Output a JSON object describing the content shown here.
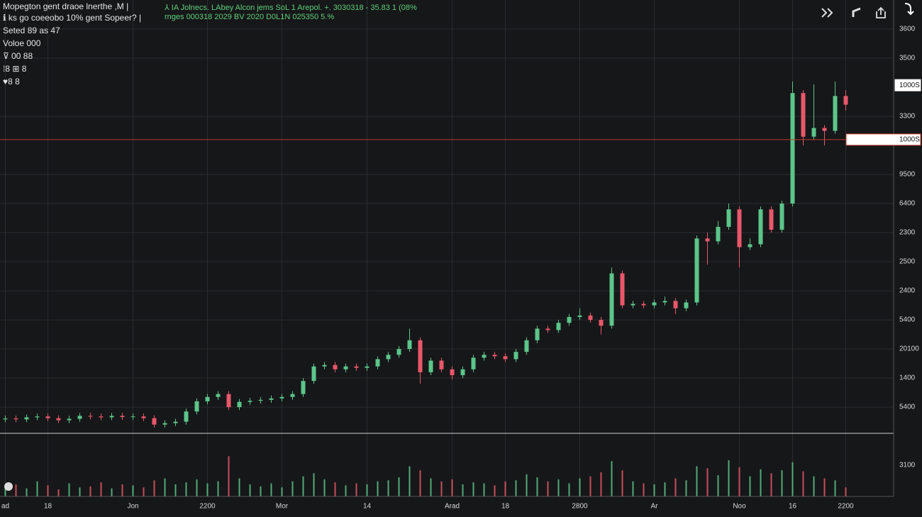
{
  "header": {
    "lines": [
      "Mopegton gent draoe lnerthe ,M |",
      "ℹ ks go coeeobo 10% gent Sopeer? |",
      "Seted 89 as 47",
      "Voloe 000",
      "⊽ 00 88",
      "⁞8 ⊞ 8",
      "♥8 8"
    ],
    "quote": [
      "⅄ IA Jolnecs. LAbey Alcon jems SoL 1 Arepol. +. 3030318 - 35.83 1 (08%",
      "rnges 000318 2029 BV 2020 D0L1N 025350 5.%"
    ]
  },
  "chart_data": {
    "type": "candlestick",
    "categories": [
      "ad",
      null,
      null,
      null,
      "18",
      null,
      null,
      null,
      null,
      null,
      null,
      null,
      "Jon",
      null,
      null,
      null,
      null,
      null,
      null,
      "2200",
      null,
      null,
      null,
      null,
      null,
      null,
      "Mor",
      null,
      null,
      null,
      null,
      null,
      null,
      null,
      "14",
      null,
      null,
      null,
      null,
      null,
      null,
      null,
      "Arad",
      null,
      null,
      null,
      null,
      "18",
      null,
      null,
      null,
      null,
      null,
      null,
      "2800",
      null,
      null,
      null,
      null,
      null,
      null,
      "Ar",
      null,
      null,
      null,
      null,
      null,
      null,
      null,
      "Noo",
      null,
      null,
      null,
      null,
      "16",
      null,
      null,
      null,
      null,
      "2200"
    ],
    "open": [
      2258,
      2261,
      2258,
      2265,
      2268,
      2262,
      2255,
      2260,
      2270,
      2268,
      2265,
      2270,
      2266,
      2268,
      2262,
      2240,
      2245,
      2250,
      2285,
      2320,
      2335,
      2345,
      2300,
      2318,
      2322,
      2325,
      2330,
      2335,
      2345,
      2390,
      2440,
      2445,
      2430,
      2440,
      2435,
      2440,
      2465,
      2480,
      2500,
      2530,
      2420,
      2460,
      2430,
      2410,
      2430,
      2470,
      2480,
      2475,
      2465,
      2490,
      2530,
      2570,
      2565,
      2590,
      2610,
      2615,
      2600,
      2580,
      2760,
      2650,
      2655,
      2650,
      2660,
      2665,
      2640,
      2660,
      2880,
      2870,
      2920,
      2980,
      2850,
      2860,
      2980,
      2910,
      3000,
      3380,
      3230,
      3260,
      3250,
      3370
    ],
    "high": [
      2271,
      2271,
      2275,
      2278,
      2278,
      2272,
      2270,
      2280,
      2280,
      2278,
      2280,
      2280,
      2278,
      2278,
      2272,
      2255,
      2260,
      2295,
      2330,
      2345,
      2355,
      2355,
      2328,
      2332,
      2335,
      2340,
      2345,
      2355,
      2400,
      2450,
      2455,
      2455,
      2450,
      2450,
      2450,
      2475,
      2490,
      2510,
      2570,
      2540,
      2470,
      2470,
      2440,
      2440,
      2480,
      2490,
      2490,
      2485,
      2500,
      2540,
      2580,
      2580,
      2600,
      2620,
      2640,
      2625,
      2610,
      2780,
      2770,
      2665,
      2665,
      2670,
      2680,
      2675,
      2670,
      2890,
      2900,
      2940,
      3000,
      2990,
      2880,
      2990,
      2990,
      3010,
      3420,
      3390,
      3410,
      3270,
      3420,
      3390
    ],
    "low": [
      2248,
      2248,
      2248,
      2255,
      2252,
      2245,
      2245,
      2250,
      2258,
      2255,
      2255,
      2256,
      2256,
      2252,
      2230,
      2230,
      2235,
      2240,
      2275,
      2310,
      2325,
      2290,
      2290,
      2308,
      2312,
      2315,
      2320,
      2325,
      2335,
      2380,
      2430,
      2420,
      2420,
      2425,
      2425,
      2430,
      2455,
      2470,
      2490,
      2380,
      2410,
      2420,
      2395,
      2400,
      2420,
      2460,
      2465,
      2455,
      2455,
      2480,
      2520,
      2555,
      2555,
      2580,
      2600,
      2590,
      2550,
      2570,
      2640,
      2640,
      2640,
      2640,
      2650,
      2620,
      2630,
      2650,
      2790,
      2860,
      2910,
      2780,
      2840,
      2850,
      2900,
      2900,
      2990,
      3200,
      3220,
      3200,
      3240,
      3320
    ],
    "close": [
      2261,
      2258,
      2265,
      2268,
      2262,
      2255,
      2260,
      2270,
      2268,
      2265,
      2270,
      2266,
      2268,
      2262,
      2240,
      2245,
      2250,
      2285,
      2320,
      2335,
      2345,
      2300,
      2318,
      2322,
      2325,
      2330,
      2335,
      2345,
      2390,
      2440,
      2445,
      2430,
      2440,
      2435,
      2440,
      2465,
      2480,
      2500,
      2530,
      2420,
      2460,
      2430,
      2410,
      2430,
      2470,
      2480,
      2475,
      2465,
      2490,
      2530,
      2570,
      2565,
      2590,
      2610,
      2615,
      2600,
      2580,
      2760,
      2650,
      2655,
      2650,
      2660,
      2665,
      2640,
      2660,
      2880,
      2870,
      2920,
      2980,
      2850,
      2860,
      2980,
      2910,
      3000,
      3380,
      3230,
      3260,
      3250,
      3370,
      3340
    ],
    "colors": {
      "up": "#5cc58a",
      "down": "#e8576a"
    },
    "ylim": [
      2210,
      3700
    ],
    "yticks": [
      3600,
      3500,
      3300,
      {
        "value": 3100,
        "label": "9500"
      },
      {
        "value": 3000,
        "label": "6400"
      },
      {
        "value": 2900,
        "label": "2300"
      },
      {
        "value": 2800,
        "label": "2500"
      },
      {
        "value": 2700,
        "label": "2400"
      },
      {
        "value": 2600,
        "label": "5400"
      },
      {
        "value": 2500,
        "label": "20100"
      },
      {
        "value": 2400,
        "label": "1400"
      },
      {
        "value": 2300,
        "label": "5400"
      }
    ],
    "price_lines": [
      {
        "value": 3407,
        "label": "1000S",
        "color": "#ffffff"
      },
      {
        "value": 3220,
        "label": "1000S",
        "color": "#c0392b"
      }
    ],
    "grid": true,
    "volume": {
      "values": [
        900,
        1200,
        800,
        1500,
        1100,
        700,
        1300,
        900,
        1000,
        1400,
        800,
        1200,
        1100,
        900,
        1600,
        1800,
        1200,
        1400,
        1700,
        1300,
        1500,
        4000,
        1800,
        1200,
        1000,
        1300,
        900,
        1500,
        2000,
        2300,
        1700,
        1400,
        1100,
        1300,
        1200,
        1500,
        1600,
        1900,
        3000,
        2600,
        1800,
        1500,
        1700,
        1200,
        1400,
        1300,
        1100,
        1500,
        1600,
        2200,
        1900,
        1500,
        1700,
        1300,
        1800,
        2000,
        2400,
        3500,
        2600,
        1500,
        1300,
        1200,
        1400,
        1800,
        1600,
        3000,
        2800,
        2100,
        3600,
        2900,
        2000,
        2700,
        2300,
        2600,
        3400,
        2500,
        2000,
        1800,
        1600,
        900
      ],
      "ylim": [
        0,
        6200
      ],
      "yticks": [
        3100
      ]
    }
  }
}
